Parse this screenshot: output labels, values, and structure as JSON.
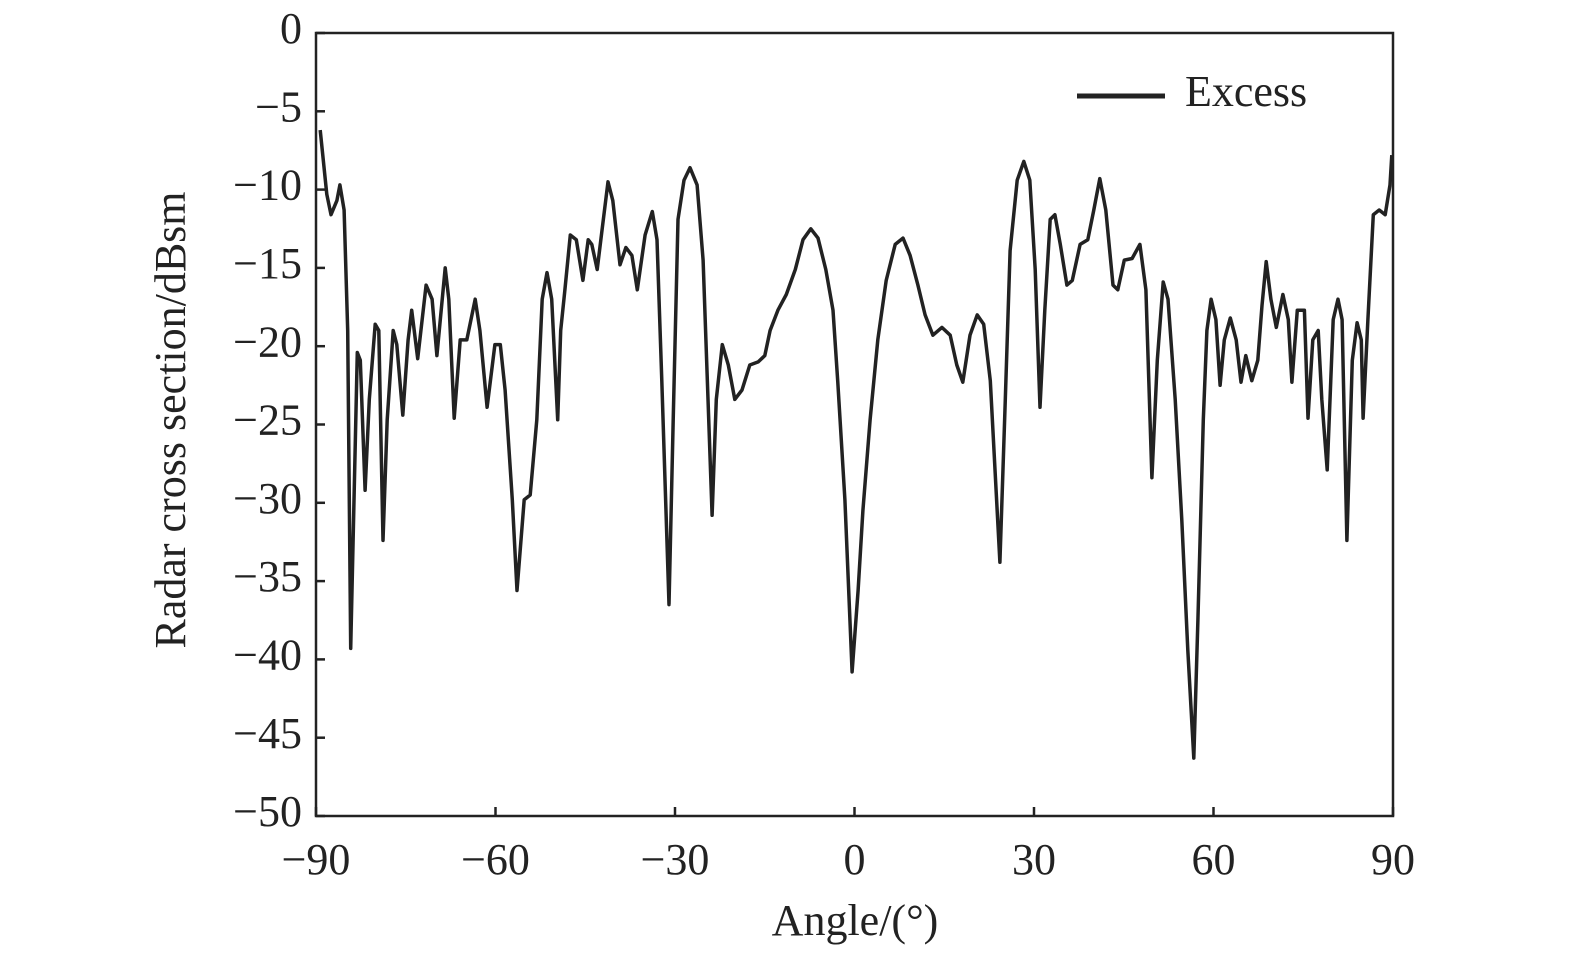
{
  "chart_data": {
    "type": "line",
    "x_label": "Angle/(°)",
    "y_label": "Radar cross section/dBsm",
    "xlim": [
      -90,
      90
    ],
    "ylim": [
      -50,
      0
    ],
    "xticks": [
      {
        "value": -90,
        "label": "−90"
      },
      {
        "value": -60,
        "label": "−60"
      },
      {
        "value": -30,
        "label": "−30"
      },
      0,
      30,
      60,
      90
    ],
    "yticks": [
      0,
      {
        "value": -5,
        "label": "−5"
      },
      {
        "value": -10,
        "label": "−10"
      },
      {
        "value": -15,
        "label": "−15"
      },
      {
        "value": -20,
        "label": "−20"
      },
      {
        "value": -25,
        "label": "−25"
      },
      {
        "value": -30,
        "label": "−30"
      },
      {
        "value": -35,
        "label": "−35"
      },
      {
        "value": -40,
        "label": "−40"
      },
      {
        "value": -45,
        "label": "−45"
      },
      {
        "value": -50,
        "label": "−50"
      }
    ],
    "legend": "upper right",
    "x": [
      -89.3,
      -88.2,
      -87.5,
      -86.5,
      -86.0,
      -85.3,
      -84.7,
      -84.2,
      -83.1,
      -82.6,
      -81.8,
      -81.1,
      -80.1,
      -79.5,
      -78.8,
      -78.1,
      -77.1,
      -76.5,
      -75.5,
      -74.6,
      -74.0,
      -73.0,
      -71.6,
      -70.6,
      -69.8,
      -68.4,
      -67.8,
      -66.9,
      -65.9,
      -64.8,
      -63.4,
      -62.6,
      -61.4,
      -60.1,
      -59.2,
      -58.4,
      -57.2,
      -56.4,
      -55.2,
      -54.2,
      -53.1,
      -52.2,
      -51.4,
      -50.6,
      -49.6,
      -49.1,
      -48.4,
      -47.5,
      -46.5,
      -45.4,
      -44.5,
      -43.9,
      -43.0,
      -42.2,
      -41.2,
      -40.4,
      -39.2,
      -38.2,
      -37.2,
      -36.3,
      -35.0,
      -33.8,
      -33.0,
      -32.2,
      -31.0,
      -30.3,
      -29.5,
      -28.5,
      -27.5,
      -26.3,
      -25.3,
      -23.8,
      -23.1,
      -22.1,
      -21.1,
      -20.0,
      -18.8,
      -17.5,
      -16.1,
      -15.0,
      -14.1,
      -12.8,
      -11.4,
      -9.9,
      -8.6,
      -7.3,
      -6.1,
      -4.8,
      -3.6,
      -2.8,
      -1.6,
      -0.4,
      0.6,
      1.4,
      2.6,
      3.9,
      5.3,
      6.8,
      8.1,
      9.3,
      10.6,
      11.8,
      13.1,
      14.6,
      16.0,
      17.1,
      18.1,
      19.3,
      20.5,
      21.6,
      22.7,
      24.3,
      25.2,
      26.0,
      27.2,
      28.3,
      29.3,
      30.2,
      31.0,
      31.8,
      32.7,
      33.5,
      34.4,
      35.5,
      36.4,
      37.7,
      39.0,
      40.0,
      41.0,
      42.0,
      43.2,
      44.0,
      45.1,
      46.4,
      47.7,
      48.7,
      49.7,
      50.6,
      51.6,
      52.4,
      53.6,
      54.7,
      55.7,
      56.7,
      57.4,
      58.3,
      58.9,
      59.6,
      60.4,
      61.1,
      61.8,
      62.8,
      63.8,
      64.6,
      65.4,
      66.4,
      67.4,
      68.1,
      68.8,
      69.6,
      70.5,
      71.6,
      72.5,
      73.1,
      74.0,
      75.2,
      75.8,
      76.6,
      77.5,
      78.1,
      79.0,
      80.0,
      80.8,
      81.5,
      82.3,
      83.2,
      84.0,
      84.7,
      85.0,
      85.8,
      86.7,
      87.7,
      88.7,
      89.5,
      89.8
    ],
    "series": [
      {
        "name": "Excess",
        "color": "#222222",
        "values": [
          -6.2,
          -10.3,
          -11.6,
          -10.7,
          -9.7,
          -11.3,
          -19.0,
          -39.3,
          -20.4,
          -20.9,
          -29.2,
          -23.4,
          -18.6,
          -19.0,
          -32.4,
          -24.7,
          -19.0,
          -19.9,
          -24.4,
          -19.6,
          -17.7,
          -20.8,
          -16.1,
          -17.0,
          -20.6,
          -15.0,
          -17.0,
          -24.6,
          -19.6,
          -19.6,
          -17.0,
          -19.0,
          -23.9,
          -19.9,
          -19.9,
          -22.8,
          -29.8,
          -35.6,
          -29.8,
          -29.5,
          -24.7,
          -17.0,
          -15.3,
          -17.0,
          -24.7,
          -19.0,
          -16.4,
          -12.9,
          -13.2,
          -15.8,
          -13.2,
          -13.5,
          -15.1,
          -12.6,
          -9.5,
          -10.7,
          -14.8,
          -13.7,
          -14.2,
          -16.4,
          -12.9,
          -11.4,
          -13.2,
          -22.2,
          -36.5,
          -24.7,
          -11.9,
          -9.4,
          -8.6,
          -9.7,
          -14.5,
          -30.8,
          -23.4,
          -19.9,
          -21.2,
          -23.4,
          -22.8,
          -21.2,
          -21.0,
          -20.6,
          -19.0,
          -17.7,
          -16.7,
          -15.1,
          -13.2,
          -12.5,
          -13.1,
          -15.1,
          -17.7,
          -22.2,
          -29.8,
          -40.8,
          -35.6,
          -30.5,
          -24.7,
          -19.6,
          -15.8,
          -13.5,
          -13.1,
          -14.2,
          -16.1,
          -18.0,
          -19.3,
          -18.8,
          -19.3,
          -21.2,
          -22.3,
          -19.3,
          -18.0,
          -18.6,
          -22.2,
          -33.8,
          -23.4,
          -13.9,
          -9.4,
          -8.2,
          -9.4,
          -15.1,
          -23.9,
          -17.7,
          -11.9,
          -11.6,
          -13.5,
          -16.1,
          -15.8,
          -13.5,
          -13.2,
          -11.3,
          -9.3,
          -11.3,
          -16.1,
          -16.4,
          -14.5,
          -14.4,
          -13.5,
          -16.4,
          -28.4,
          -20.9,
          -15.9,
          -17.0,
          -23.4,
          -31.1,
          -39.4,
          -46.3,
          -37.5,
          -24.7,
          -19.0,
          -17.0,
          -18.3,
          -22.5,
          -19.6,
          -18.2,
          -19.6,
          -22.3,
          -20.6,
          -22.2,
          -20.9,
          -17.4,
          -14.6,
          -17.0,
          -18.8,
          -16.7,
          -18.3,
          -22.3,
          -17.7,
          -17.7,
          -24.6,
          -19.6,
          -19.0,
          -23.4,
          -27.9,
          -18.3,
          -17.0,
          -18.3,
          -32.4,
          -20.9,
          -18.5,
          -19.6,
          -24.6,
          -18.3,
          -11.6,
          -11.3,
          -11.6,
          -9.7,
          -7.8
        ]
      }
    ]
  }
}
